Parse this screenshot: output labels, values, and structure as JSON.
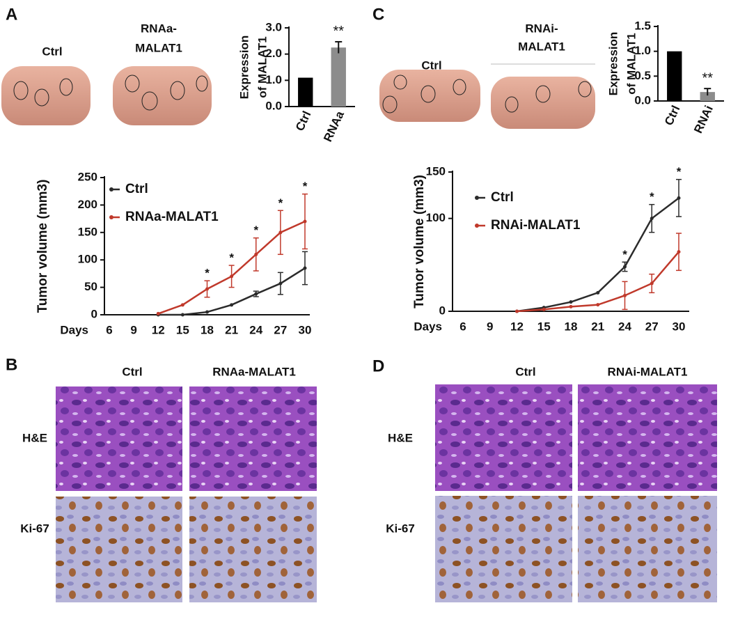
{
  "panels": {
    "A": {
      "label": "A",
      "ctrl": "Ctrl",
      "treatment": [
        "RNAa-",
        "MALAT1"
      ]
    },
    "B": {
      "label": "B",
      "ctrl": "Ctrl",
      "treatment": "RNAa-MALAT1",
      "rows": [
        "H&E",
        "Ki-67"
      ]
    },
    "C": {
      "label": "C",
      "ctrl": "Ctrl",
      "treatment": [
        "RNAi-",
        "MALAT1"
      ]
    },
    "D": {
      "label": "D",
      "ctrl": "Ctrl",
      "treatment": "RNAi-MALAT1",
      "rows": [
        "H&E",
        "Ki-67"
      ]
    }
  },
  "chart_data": [
    {
      "type": "bar",
      "ylabel": [
        "Expression",
        "of MALAT1"
      ],
      "categories": [
        "Ctrl",
        "RNAa"
      ],
      "values": [
        1.1,
        2.25
      ],
      "errors": [
        null,
        0.22
      ],
      "colors": [
        "#000000",
        "#8c8c8c"
      ],
      "significance": [
        null,
        "**"
      ],
      "ylim": [
        0,
        3
      ],
      "yticks": [
        {
          "value": 0,
          "label": "0.0"
        },
        {
          "value": 1,
          "label": "1.0"
        },
        {
          "value": 2,
          "label": "2.0"
        },
        {
          "value": 3,
          "label": "3.0"
        }
      ]
    },
    {
      "type": "line",
      "xlabel": "Days",
      "ylabel": "Tumor volume (mm3)",
      "categories": [
        "6",
        "9",
        "12",
        "15",
        "18",
        "21",
        "24",
        "27",
        "30"
      ],
      "series": [
        {
          "name": "Ctrl",
          "color": "#2b2b2b",
          "values": [
            null,
            null,
            0,
            0,
            5,
            18,
            38,
            57,
            85
          ],
          "errors": [
            null,
            null,
            null,
            null,
            null,
            null,
            5,
            20,
            30
          ]
        },
        {
          "name": "RNAa-MALAT1",
          "color": "#c0392b",
          "values": [
            null,
            null,
            2,
            18,
            47,
            70,
            110,
            150,
            170
          ],
          "errors": [
            null,
            null,
            null,
            null,
            15,
            20,
            30,
            40,
            50
          ]
        }
      ],
      "significance": [
        null,
        null,
        null,
        null,
        "*",
        "*",
        "*",
        "*",
        "*"
      ],
      "ylim": [
        0,
        250
      ],
      "yticks": [
        0,
        50,
        100,
        150,
        200,
        250
      ]
    },
    {
      "type": "bar",
      "ylabel": [
        "Expression",
        "of MALAT1"
      ],
      "categories": [
        "Ctrl",
        "RNAi"
      ],
      "values": [
        1.0,
        0.18
      ],
      "errors": [
        null,
        0.07
      ],
      "colors": [
        "#000000",
        "#8c8c8c"
      ],
      "significance": [
        null,
        "**"
      ],
      "ylim": [
        0,
        1.5
      ],
      "yticks": [
        {
          "value": 0,
          "label": "0.0"
        },
        {
          "value": 0.5,
          "label": "0.5"
        },
        {
          "value": 1,
          "label": "1.0"
        },
        {
          "value": 1.5,
          "label": "1.5"
        }
      ]
    },
    {
      "type": "line",
      "xlabel": "Days",
      "ylabel": "Tumor volume (mm3)",
      "categories": [
        "6",
        "9",
        "12",
        "15",
        "18",
        "21",
        "24",
        "27",
        "30"
      ],
      "series": [
        {
          "name": "Ctrl",
          "color": "#2b2b2b",
          "values": [
            null,
            null,
            0,
            4,
            10,
            20,
            48,
            100,
            122
          ],
          "errors": [
            null,
            null,
            null,
            null,
            null,
            null,
            5,
            15,
            20
          ]
        },
        {
          "name": "RNAi-MALAT1",
          "color": "#c0392b",
          "values": [
            null,
            null,
            0,
            2,
            5,
            7,
            17,
            30,
            64
          ],
          "errors": [
            null,
            null,
            null,
            null,
            null,
            null,
            15,
            10,
            20
          ]
        }
      ],
      "significance": [
        null,
        null,
        null,
        null,
        null,
        null,
        "*",
        "*",
        "*"
      ],
      "ylim": [
        0,
        150
      ],
      "yticks": [
        0,
        100,
        150
      ]
    }
  ]
}
